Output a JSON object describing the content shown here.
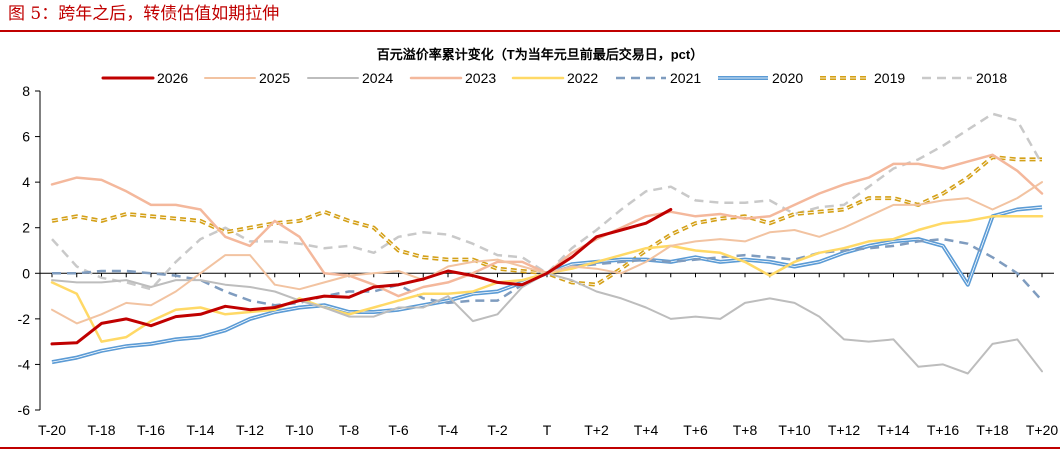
{
  "figure_title": "图 5：跨年之后，转债估值如期拉伸",
  "chart_data": {
    "type": "line",
    "title": "百元溢价率累计变化（T为当年元旦前最后交易日，pct）",
    "xlabel": "",
    "ylabel": "",
    "ylim": [
      -6,
      8
    ],
    "yticks": [
      -6,
      -4,
      -2,
      0,
      2,
      4,
      6,
      8
    ],
    "x": [
      "T-20",
      "T-19",
      "T-18",
      "T-17",
      "T-16",
      "T-15",
      "T-14",
      "T-13",
      "T-12",
      "T-11",
      "T-10",
      "T-9",
      "T-8",
      "T-7",
      "T-6",
      "T-5",
      "T-4",
      "T-3",
      "T-2",
      "T-1",
      "T",
      "T+1",
      "T+2",
      "T+3",
      "T+4",
      "T+5",
      "T+6",
      "T+7",
      "T+8",
      "T+9",
      "T+10",
      "T+11",
      "T+12",
      "T+13",
      "T+14",
      "T+15",
      "T+16",
      "T+17",
      "T+18",
      "T+19",
      "T+20"
    ],
    "xtick_labels": [
      "T-20",
      "T-18",
      "T-16",
      "T-14",
      "T-12",
      "T-10",
      "T-8",
      "T-6",
      "T-4",
      "T-2",
      "T",
      "T+2",
      "T+4",
      "T+6",
      "T+8",
      "T+10",
      "T+12",
      "T+14",
      "T+16",
      "T+18",
      "T+20"
    ],
    "legend_position": "top",
    "grid": false,
    "series": [
      {
        "name": "2026",
        "color": "#c00000",
        "style": "solid",
        "width": 3,
        "values": [
          -3.1,
          -3.05,
          -2.2,
          -2.0,
          -2.3,
          -1.9,
          -1.8,
          -1.45,
          -1.6,
          -1.5,
          -1.2,
          -1.0,
          -1.05,
          -0.6,
          -0.5,
          -0.25,
          0.1,
          -0.1,
          -0.4,
          -0.5,
          0.0,
          0.7,
          1.6,
          1.9,
          2.2,
          2.8,
          null,
          null,
          null,
          null,
          null,
          null,
          null,
          null,
          null,
          null,
          null,
          null,
          null,
          null,
          null
        ]
      },
      {
        "name": "2025",
        "color": "#f2c3a1",
        "style": "solid",
        "width": 2,
        "values": [
          -1.6,
          -2.2,
          -1.8,
          -1.3,
          -1.4,
          -0.8,
          0.0,
          0.8,
          0.8,
          -0.5,
          -0.7,
          -0.4,
          -0.1,
          0.0,
          0.1,
          -0.3,
          0.3,
          0.5,
          0.6,
          0.3,
          0.0,
          0.3,
          0.2,
          0.0,
          0.5,
          1.2,
          1.4,
          1.5,
          1.4,
          1.8,
          1.9,
          1.6,
          2.0,
          2.5,
          3.0,
          3.0,
          3.2,
          3.3,
          2.8,
          3.3,
          4.0
        ]
      },
      {
        "name": "2024",
        "color": "#bdbdbd",
        "style": "solid",
        "width": 2,
        "values": [
          -0.3,
          -0.4,
          -0.4,
          -0.3,
          -0.6,
          -0.3,
          -0.3,
          -0.5,
          -0.6,
          -0.8,
          -1.2,
          -1.5,
          -1.9,
          -1.9,
          -1.5,
          -1.5,
          -1.0,
          -2.1,
          -1.8,
          -0.6,
          0.0,
          -0.3,
          -0.8,
          -1.1,
          -1.5,
          -2.0,
          -1.9,
          -2.0,
          -1.3,
          -1.1,
          -1.3,
          -1.9,
          -2.9,
          -3.0,
          -2.9,
          -4.1,
          -4.0,
          -4.4,
          -3.1,
          -2.9,
          -4.3
        ]
      },
      {
        "name": "2023",
        "color": "#f4b89c",
        "style": "solid",
        "width": 2.5,
        "values": [
          3.9,
          4.2,
          4.1,
          3.6,
          3.0,
          3.0,
          2.8,
          1.6,
          1.2,
          2.3,
          1.6,
          0.0,
          -0.1,
          -0.5,
          -1.0,
          -0.6,
          -0.4,
          0.0,
          0.5,
          0.5,
          0.0,
          0.9,
          1.5,
          2.0,
          2.5,
          2.7,
          2.5,
          2.6,
          2.4,
          2.5,
          3.0,
          3.5,
          3.9,
          4.2,
          4.8,
          4.8,
          4.6,
          4.9,
          5.2,
          4.5,
          3.5
        ]
      },
      {
        "name": "2022",
        "color": "#ffd966",
        "style": "solid",
        "width": 2.5,
        "values": [
          -0.4,
          -0.9,
          -3.0,
          -2.8,
          -2.1,
          -1.6,
          -1.5,
          -1.8,
          -1.7,
          -1.6,
          -1.1,
          -1.5,
          -1.8,
          -1.5,
          -1.2,
          -0.9,
          -0.9,
          -0.8,
          -0.4,
          -0.3,
          0.0,
          0.2,
          0.5,
          0.8,
          1.1,
          1.2,
          1.0,
          0.9,
          0.5,
          -0.1,
          0.5,
          0.9,
          1.1,
          1.4,
          1.5,
          1.9,
          2.2,
          2.3,
          2.5,
          2.5,
          2.5
        ]
      },
      {
        "name": "2021",
        "color": "#7f9cbf",
        "style": "dashed",
        "width": 2.5,
        "values": [
          0.0,
          0.0,
          0.1,
          0.1,
          0.0,
          -0.1,
          -0.3,
          -0.8,
          -1.2,
          -1.4,
          -1.3,
          -1.0,
          -0.8,
          -0.8,
          -0.5,
          -1.1,
          -1.3,
          -1.2,
          -1.2,
          -0.5,
          0.0,
          0.3,
          0.4,
          0.5,
          0.6,
          0.5,
          0.6,
          0.7,
          0.8,
          0.7,
          0.6,
          0.9,
          1.0,
          1.1,
          1.2,
          1.4,
          1.5,
          1.3,
          0.7,
          0.0,
          -1.2
        ]
      },
      {
        "name": "2020",
        "color": "#5b9bd5",
        "style": "double",
        "width": 2.5,
        "values": [
          -3.9,
          -3.7,
          -3.4,
          -3.2,
          -3.1,
          -2.9,
          -2.8,
          -2.5,
          -2.0,
          -1.7,
          -1.5,
          -1.4,
          -1.7,
          -1.7,
          -1.6,
          -1.4,
          -1.2,
          -0.9,
          -0.8,
          -0.4,
          0.0,
          0.4,
          0.5,
          0.6,
          0.6,
          0.5,
          0.7,
          0.5,
          0.6,
          0.5,
          0.3,
          0.5,
          0.9,
          1.2,
          1.4,
          1.5,
          1.2,
          -0.5,
          2.5,
          2.8,
          2.9
        ]
      },
      {
        "name": "2019",
        "color": "#d4a017",
        "style": "dashed-double",
        "width": 2.5,
        "values": [
          2.3,
          2.5,
          2.3,
          2.6,
          2.5,
          2.4,
          2.3,
          1.8,
          2.0,
          2.2,
          2.3,
          2.7,
          2.3,
          2.0,
          1.0,
          0.7,
          0.6,
          0.6,
          0.2,
          0.1,
          0.0,
          -0.4,
          -0.5,
          0.2,
          1.0,
          1.7,
          2.2,
          2.4,
          2.5,
          2.2,
          2.6,
          2.7,
          2.8,
          3.3,
          3.3,
          3.0,
          3.5,
          4.2,
          5.1,
          5.0,
          5.0
        ]
      },
      {
        "name": "2018",
        "color": "#c9c9c9",
        "style": "dashed",
        "width": 2.5,
        "values": [
          1.5,
          0.3,
          -0.2,
          -0.4,
          -0.7,
          0.5,
          1.5,
          2.0,
          1.4,
          1.4,
          1.3,
          1.1,
          1.2,
          0.9,
          1.6,
          1.8,
          1.7,
          1.3,
          0.8,
          0.7,
          0.0,
          1.1,
          1.9,
          2.8,
          3.6,
          3.8,
          3.2,
          3.1,
          3.1,
          3.2,
          2.6,
          2.9,
          3.0,
          3.8,
          4.6,
          5.0,
          5.6,
          6.3,
          7.0,
          6.7,
          4.8
        ]
      }
    ]
  }
}
